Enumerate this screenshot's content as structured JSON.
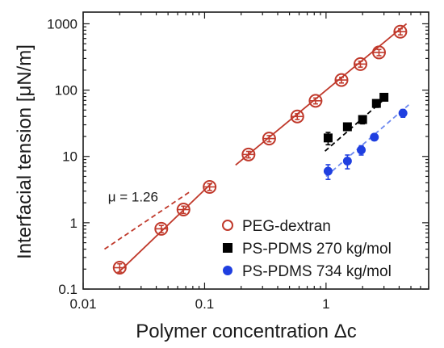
{
  "chart_data": {
    "type": "scatter",
    "title": "",
    "xlabel": "Polymer concentration Δc",
    "ylabel": "Interfacial tension  [μN/m]",
    "xscale": "log",
    "yscale": "log",
    "xlim": [
      0.01,
      7
    ],
    "ylim": [
      0.1,
      1500
    ],
    "x_ticks": [
      0.01,
      0.1,
      1
    ],
    "x_tick_labels": [
      "0.01",
      "0.1",
      "1"
    ],
    "y_ticks": [
      0.1,
      1,
      10,
      100,
      1000
    ],
    "y_tick_labels": [
      "0.1",
      "1",
      "10",
      "100",
      "1000"
    ],
    "grid": false,
    "legend_position": "lower-right",
    "annotation": {
      "text": "μ = 1.26",
      "x": 0.016,
      "y": 2.1
    },
    "series": [
      {
        "name": "PEG-dextran",
        "marker": "open-circle",
        "color": "#c0392b",
        "x": [
          0.02,
          0.044,
          0.067,
          0.11,
          0.23,
          0.34,
          0.58,
          0.82,
          1.34,
          1.92,
          2.73,
          4.09
        ],
        "y": [
          0.21,
          0.81,
          1.58,
          3.47,
          10.7,
          18.6,
          40.0,
          69.0,
          142,
          247,
          370,
          760
        ],
        "err": [
          0.03,
          0.1,
          0.2,
          0.4,
          1.2,
          2,
          4,
          7,
          14,
          25,
          40,
          80
        ]
      },
      {
        "name": "PS-PDMS 270 kg/mol",
        "marker": "filled-square",
        "color": "#000000",
        "x": [
          1.04,
          1.5,
          2.0,
          2.6,
          3.0
        ],
        "y": [
          19,
          28,
          36,
          63,
          78
        ],
        "err": [
          4,
          3,
          5,
          8,
          8
        ]
      },
      {
        "name": "PS-PDMS 734 kg/mol",
        "marker": "filled-circle",
        "color": "#1f3fe0",
        "x": [
          1.04,
          1.5,
          1.95,
          2.5,
          4.3
        ],
        "y": [
          6.0,
          8.5,
          12.5,
          19.5,
          45
        ],
        "err": [
          1.5,
          2,
          2,
          2,
          6
        ]
      }
    ],
    "fit_lines": [
      {
        "series": "PEG-dextran",
        "style": "solid",
        "color": "#c0392b",
        "x": [
          0.019,
          0.115
        ],
        "y": [
          0.17,
          4.0
        ]
      },
      {
        "series": "PEG-dextran",
        "style": "solid",
        "color": "#c0392b",
        "x": [
          0.18,
          4.6
        ],
        "y": [
          7.4,
          1000
        ]
      },
      {
        "series": "PEG-dextran",
        "style": "dashed",
        "color": "#c0392b",
        "x": [
          0.015,
          0.075
        ],
        "y": [
          0.4,
          2.9
        ]
      },
      {
        "series": "PS-PDMS 270 kg/mol",
        "style": "dashed",
        "color": "#000000",
        "x": [
          0.98,
          3.2
        ],
        "y": [
          12,
          80
        ]
      },
      {
        "series": "PS-PDMS 734 kg/mol",
        "style": "dashed",
        "color": "#6d89f0",
        "x": [
          1.0,
          4.8
        ],
        "y": [
          5.0,
          60
        ]
      }
    ]
  }
}
